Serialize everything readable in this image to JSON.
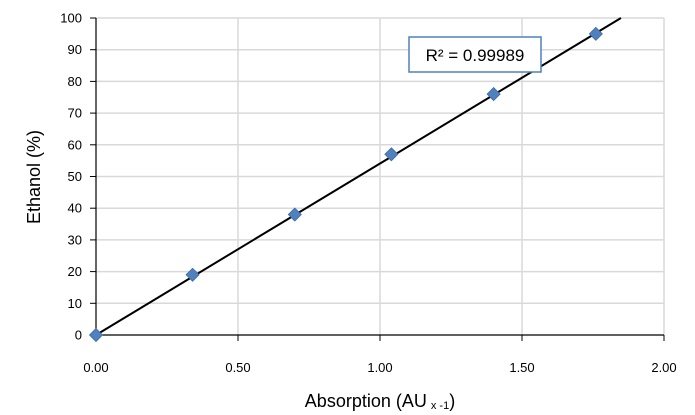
{
  "chart_data": {
    "type": "scatter",
    "xlabel": "Absorption (AU",
    "xlabel_subscript": "x -1",
    "xlabel_close": ")",
    "ylabel": "Ethanol (%)",
    "xlim": [
      0,
      2
    ],
    "ylim": [
      0,
      100
    ],
    "x_ticks": [
      "0.00",
      "0.50",
      "1.00",
      "1.50",
      "2.00"
    ],
    "y_ticks": [
      "0",
      "10",
      "20",
      "30",
      "40",
      "50",
      "60",
      "70",
      "80",
      "90",
      "100"
    ],
    "grid": true,
    "series": [
      {
        "x": [
          0.0,
          0.34,
          0.7,
          1.04,
          1.4,
          1.76
        ],
        "y": [
          0,
          19,
          38,
          57,
          76,
          95
        ],
        "marker": "diamond",
        "color": "#4f81bd"
      }
    ],
    "trendline": {
      "type": "linear",
      "slope": 54.1,
      "intercept": 0,
      "color": "#000000"
    },
    "annotation": {
      "text": "R² = 0.99989",
      "border_color": "#4f81bd"
    }
  }
}
